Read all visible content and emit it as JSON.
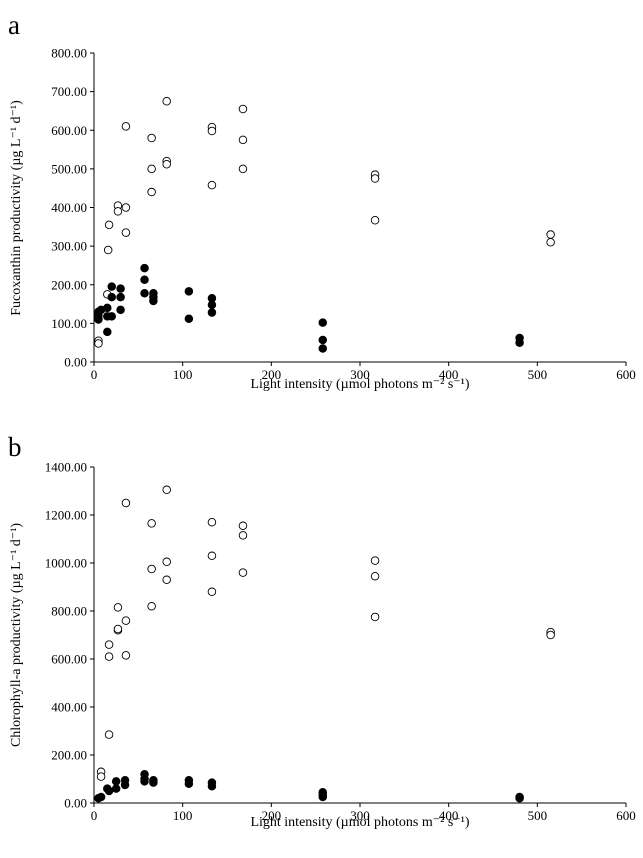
{
  "chart_data": [
    {
      "type": "scatter",
      "panel_label": "a",
      "xlabel": "Light intensity (µmol photons m⁻² s⁻¹)",
      "ylabel": "Fucoxanthin productivity (µg L⁻¹ d⁻¹)",
      "xlim": [
        0,
        600
      ],
      "ylim": [
        0,
        800
      ],
      "x_ticks": [
        "0",
        "100",
        "200",
        "300",
        "400",
        "500",
        "600"
      ],
      "y_ticks": [
        "0.00",
        "100.00",
        "200.00",
        "300.00",
        "400.00",
        "500.00",
        "600.00",
        "700.00",
        "800.00"
      ],
      "grid": false,
      "legend": "none",
      "series": [
        {
          "marker": "open-circle",
          "points": [
            [
              5,
              55
            ],
            [
              5,
              48
            ],
            [
              15,
              175
            ],
            [
              16,
              290
            ],
            [
              17,
              355
            ],
            [
              27,
              405
            ],
            [
              27,
              390
            ],
            [
              36,
              610
            ],
            [
              36,
              400
            ],
            [
              36,
              335
            ],
            [
              65,
              580
            ],
            [
              65,
              500
            ],
            [
              65,
              440
            ],
            [
              82,
              675
            ],
            [
              82,
              520
            ],
            [
              82,
              512
            ],
            [
              133,
              608
            ],
            [
              133,
              598
            ],
            [
              133,
              458
            ],
            [
              168,
              655
            ],
            [
              168,
              575
            ],
            [
              168,
              500
            ],
            [
              317,
              485
            ],
            [
              317,
              475
            ],
            [
              317,
              367
            ],
            [
              515,
              330
            ],
            [
              515,
              310
            ]
          ]
        },
        {
          "marker": "filled-circle",
          "points": [
            [
              5,
              130
            ],
            [
              5,
              120
            ],
            [
              5,
              110
            ],
            [
              8,
              135
            ],
            [
              15,
              140
            ],
            [
              15,
              118
            ],
            [
              15,
              78
            ],
            [
              20,
              195
            ],
            [
              20,
              168
            ],
            [
              20,
              118
            ],
            [
              30,
              190
            ],
            [
              30,
              168
            ],
            [
              30,
              135
            ],
            [
              57,
              243
            ],
            [
              57,
              213
            ],
            [
              57,
              178
            ],
            [
              67,
              178
            ],
            [
              67,
              168
            ],
            [
              67,
              158
            ],
            [
              107,
              183
            ],
            [
              107,
              112
            ],
            [
              133,
              165
            ],
            [
              133,
              148
            ],
            [
              133,
              128
            ],
            [
              258,
              102
            ],
            [
              258,
              57
            ],
            [
              258,
              35
            ],
            [
              480,
              62
            ],
            [
              480,
              50
            ]
          ]
        }
      ]
    },
    {
      "type": "scatter",
      "panel_label": "b",
      "xlabel": "Light intensity (µmol photons m⁻² s⁻¹)",
      "ylabel": "Chlorophyll-a productivity (µg L⁻¹ d⁻¹)",
      "xlim": [
        0,
        600
      ],
      "ylim": [
        0,
        1400
      ],
      "x_ticks": [
        "0",
        "100",
        "200",
        "300",
        "400",
        "500",
        "600"
      ],
      "y_ticks": [
        "0.00",
        "200.00",
        "400.00",
        "600.00",
        "800.00",
        "1000.00",
        "1200.00",
        "1400.00"
      ],
      "grid": false,
      "legend": "none",
      "series": [
        {
          "marker": "open-circle",
          "points": [
            [
              8,
              130
            ],
            [
              8,
              110
            ],
            [
              17,
              660
            ],
            [
              17,
              610
            ],
            [
              17,
              285
            ],
            [
              27,
              815
            ],
            [
              27,
              720
            ],
            [
              27,
              725
            ],
            [
              36,
              1250
            ],
            [
              36,
              760
            ],
            [
              36,
              615
            ],
            [
              65,
              1165
            ],
            [
              65,
              975
            ],
            [
              65,
              820
            ],
            [
              82,
              1305
            ],
            [
              82,
              1005
            ],
            [
              82,
              930
            ],
            [
              133,
              1170
            ],
            [
              133,
              1030
            ],
            [
              133,
              880
            ],
            [
              168,
              1155
            ],
            [
              168,
              1115
            ],
            [
              168,
              960
            ],
            [
              317,
              1010
            ],
            [
              317,
              945
            ],
            [
              317,
              775
            ],
            [
              515,
              712
            ],
            [
              515,
              700
            ]
          ]
        },
        {
          "marker": "filled-circle",
          "points": [
            [
              5,
              20
            ],
            [
              8,
              25
            ],
            [
              15,
              60
            ],
            [
              17,
              50
            ],
            [
              25,
              90
            ],
            [
              25,
              60
            ],
            [
              35,
              95
            ],
            [
              35,
              75
            ],
            [
              57,
              120
            ],
            [
              57,
              100
            ],
            [
              57,
              90
            ],
            [
              67,
              95
            ],
            [
              67,
              85
            ],
            [
              107,
              95
            ],
            [
              107,
              80
            ],
            [
              133,
              85
            ],
            [
              133,
              70
            ],
            [
              258,
              45
            ],
            [
              258,
              35
            ],
            [
              258,
              25
            ],
            [
              480,
              25
            ],
            [
              480,
              20
            ]
          ]
        }
      ]
    }
  ]
}
